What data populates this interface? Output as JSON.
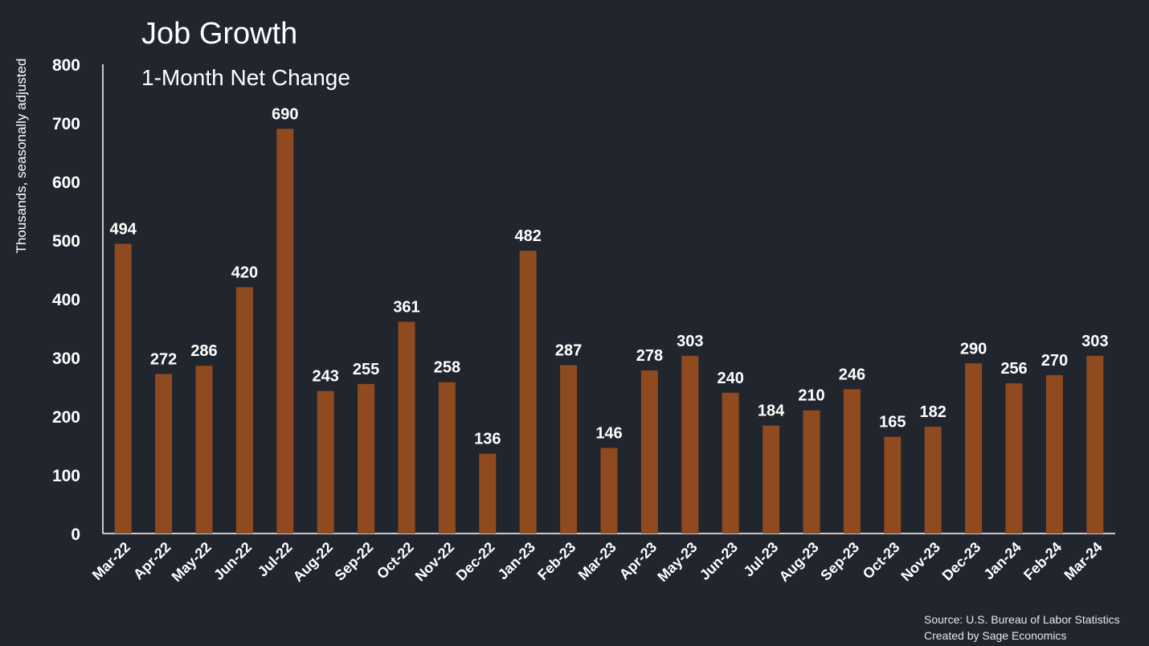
{
  "chart_data": {
    "type": "bar",
    "title": "Job Growth",
    "subtitle": "1-Month Net Change",
    "ylabel": "Thousands, seasonally adjusted",
    "xlabel": "",
    "ylim": [
      0,
      800
    ],
    "yticks": [
      0,
      100,
      200,
      300,
      400,
      500,
      600,
      700,
      800
    ],
    "grid": false,
    "categories": [
      "Mar-22",
      "Apr-22",
      "May-22",
      "Jun-22",
      "Jul-22",
      "Aug-22",
      "Sep-22",
      "Oct-22",
      "Nov-22",
      "Dec-22",
      "Jan-23",
      "Feb-23",
      "Mar-23",
      "Apr-23",
      "May-23",
      "Jun-23",
      "Jul-23",
      "Aug-23",
      "Sep-23",
      "Oct-23",
      "Nov-23",
      "Dec-23",
      "Jan-24",
      "Feb-24",
      "Mar-24"
    ],
    "values": [
      494,
      272,
      286,
      420,
      690,
      243,
      255,
      361,
      258,
      136,
      482,
      287,
      146,
      278,
      303,
      240,
      184,
      210,
      246,
      165,
      182,
      290,
      256,
      270,
      303
    ],
    "bar_color": "#8f4a1f",
    "background_color": "#21252d"
  },
  "source": {
    "line1": "Source: U.S. Bureau of Labor Statistics",
    "line2": "Created by Sage Economics"
  }
}
